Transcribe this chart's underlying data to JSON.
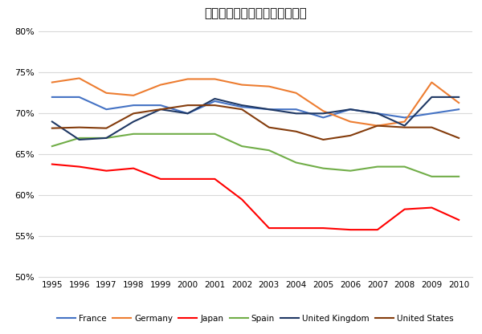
{
  "title": "労働分配率推移（非農業部門）",
  "years": [
    1995,
    1996,
    1997,
    1998,
    1999,
    2000,
    2001,
    2002,
    2003,
    2004,
    2005,
    2006,
    2007,
    2008,
    2009,
    2010
  ],
  "series": {
    "France": {
      "color": "#4472C4",
      "data": [
        72.0,
        72.0,
        70.5,
        71.0,
        71.0,
        70.0,
        71.5,
        70.8,
        70.5,
        70.5,
        69.5,
        70.5,
        70.0,
        69.5,
        70.0,
        70.5
      ]
    },
    "Germany": {
      "color": "#ED7D31",
      "data": [
        73.8,
        74.3,
        72.5,
        72.2,
        73.5,
        74.2,
        74.2,
        73.5,
        73.3,
        72.5,
        70.3,
        69.0,
        68.5,
        69.0,
        73.8,
        71.3
      ]
    },
    "Japan": {
      "color": "#FF0000",
      "data": [
        63.8,
        63.5,
        63.0,
        63.3,
        62.0,
        62.0,
        62.0,
        59.5,
        56.0,
        56.0,
        56.0,
        55.8,
        55.8,
        58.3,
        58.5,
        57.0
      ]
    },
    "Spain": {
      "color": "#70AD47",
      "data": [
        66.0,
        67.0,
        67.0,
        67.5,
        67.5,
        67.5,
        67.5,
        66.0,
        65.5,
        64.0,
        63.3,
        63.0,
        63.5,
        63.5,
        62.3,
        62.3
      ]
    },
    "United Kingdom": {
      "color": "#1F3864",
      "data": [
        69.0,
        66.8,
        67.0,
        69.0,
        70.5,
        70.0,
        71.8,
        71.0,
        70.5,
        70.0,
        70.0,
        70.5,
        70.0,
        68.5,
        72.0,
        72.0
      ]
    },
    "United States": {
      "color": "#843C0C",
      "data": [
        68.2,
        68.3,
        68.2,
        70.0,
        70.5,
        71.0,
        71.0,
        70.5,
        68.3,
        67.8,
        66.8,
        67.3,
        68.5,
        68.3,
        68.3,
        67.0
      ]
    }
  },
  "ylim": [
    50,
    81
  ],
  "yticks": [
    50,
    55,
    60,
    65,
    70,
    75,
    80
  ],
  "xlim": [
    1994.5,
    2010.5
  ],
  "background_color": "#FFFFFF",
  "figsize": [
    6.0,
    4.16
  ],
  "dpi": 100,
  "grid_color": "#D9D9D9",
  "legend_order": [
    "France",
    "Germany",
    "Japan",
    "Spain",
    "United Kingdom",
    "United States"
  ]
}
